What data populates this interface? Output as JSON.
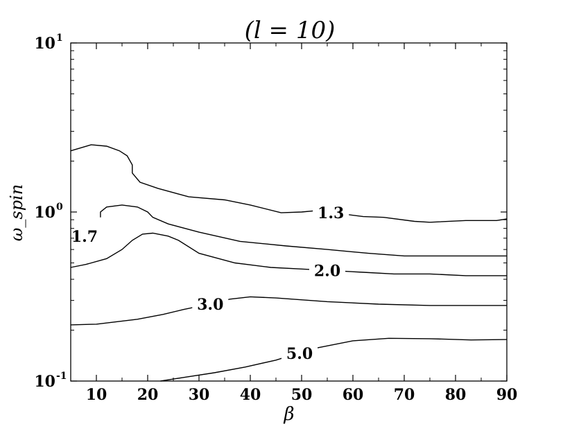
{
  "chart_data": {
    "type": "contour",
    "title": "(l = 10)",
    "xlabel": "β",
    "ylabel": "ω_spin",
    "xlim": [
      5,
      90
    ],
    "ylim": [
      0.1,
      10
    ],
    "yscale": "log",
    "x_ticks": [
      "10",
      "20",
      "30",
      "40",
      "50",
      "60",
      "70",
      "80",
      "90"
    ],
    "y_ticks": [
      {
        "base": "10",
        "exp": "-1",
        "value": 0.1
      },
      {
        "base": "10",
        "exp": "0",
        "value": 1
      },
      {
        "base": "10",
        "exp": "1",
        "value": 10
      }
    ],
    "grid": false,
    "series": [
      {
        "name": "1.3",
        "points": [
          [
            5,
            2.3
          ],
          [
            9,
            2.5
          ],
          [
            12,
            2.45
          ],
          [
            14.5,
            2.3
          ],
          [
            16,
            2.15
          ],
          [
            17,
            1.9
          ],
          [
            17,
            1.7
          ],
          [
            18.5,
            1.5
          ],
          [
            22,
            1.38
          ],
          [
            28,
            1.23
          ],
          [
            35,
            1.18
          ],
          [
            40,
            1.1
          ],
          [
            46,
            0.99
          ],
          [
            50,
            1.0
          ],
          [
            53,
            1.02
          ],
          [
            62,
            0.94
          ],
          [
            66,
            0.93
          ],
          [
            72,
            0.88
          ],
          [
            75,
            0.87
          ],
          [
            82,
            0.89
          ],
          [
            88,
            0.89
          ],
          [
            90,
            0.91
          ]
        ],
        "label_at": [
          55.7,
          0.99
        ]
      },
      {
        "name": "1.7",
        "points": [
          [
            10.8,
            0.93
          ],
          [
            10.8,
            1.0
          ],
          [
            12,
            1.07
          ],
          [
            15,
            1.1
          ],
          [
            18,
            1.07
          ],
          [
            20,
            1.0
          ],
          [
            21,
            0.93
          ],
          [
            24,
            0.85
          ],
          [
            30,
            0.76
          ],
          [
            38,
            0.67
          ],
          [
            47,
            0.63
          ],
          [
            55,
            0.6
          ],
          [
            63,
            0.57
          ],
          [
            70,
            0.55
          ],
          [
            80,
            0.55
          ],
          [
            90,
            0.55
          ]
        ],
        "label_at": [
          7.7,
          0.72
        ]
      },
      {
        "name": "2.0",
        "points": [
          [
            5,
            0.47
          ],
          [
            8,
            0.49
          ],
          [
            12,
            0.53
          ],
          [
            15,
            0.6
          ],
          [
            17,
            0.68
          ],
          [
            19,
            0.74
          ],
          [
            21,
            0.75
          ],
          [
            24,
            0.72
          ],
          [
            26,
            0.68
          ],
          [
            30,
            0.57
          ],
          [
            37,
            0.5
          ],
          [
            44,
            0.47
          ],
          [
            50,
            0.46
          ],
          [
            56,
            0.45
          ],
          [
            62,
            0.44
          ],
          [
            68,
            0.43
          ],
          [
            75,
            0.43
          ],
          [
            82,
            0.42
          ],
          [
            90,
            0.42
          ]
        ],
        "label_at": [
          55,
          0.45
        ]
      },
      {
        "name": "3.0",
        "points": [
          [
            5,
            0.215
          ],
          [
            10,
            0.217
          ],
          [
            18,
            0.232
          ],
          [
            23,
            0.248
          ],
          [
            27,
            0.265
          ],
          [
            32,
            0.285
          ],
          [
            36,
            0.305
          ],
          [
            40,
            0.315
          ],
          [
            45,
            0.31
          ],
          [
            55,
            0.295
          ],
          [
            65,
            0.285
          ],
          [
            75,
            0.28
          ],
          [
            85,
            0.28
          ],
          [
            90,
            0.28
          ]
        ],
        "label_at": [
          32.2,
          0.285
        ]
      },
      {
        "name": "5.0",
        "points": [
          [
            22.5,
            0.1
          ],
          [
            27,
            0.105
          ],
          [
            33,
            0.112
          ],
          [
            39,
            0.121
          ],
          [
            45,
            0.133
          ],
          [
            49,
            0.145
          ],
          [
            53,
            0.157
          ],
          [
            60,
            0.173
          ],
          [
            67,
            0.179
          ],
          [
            75,
            0.178
          ],
          [
            83,
            0.175
          ],
          [
            90,
            0.176
          ]
        ],
        "label_at": [
          49.6,
          0.146
        ]
      }
    ]
  }
}
